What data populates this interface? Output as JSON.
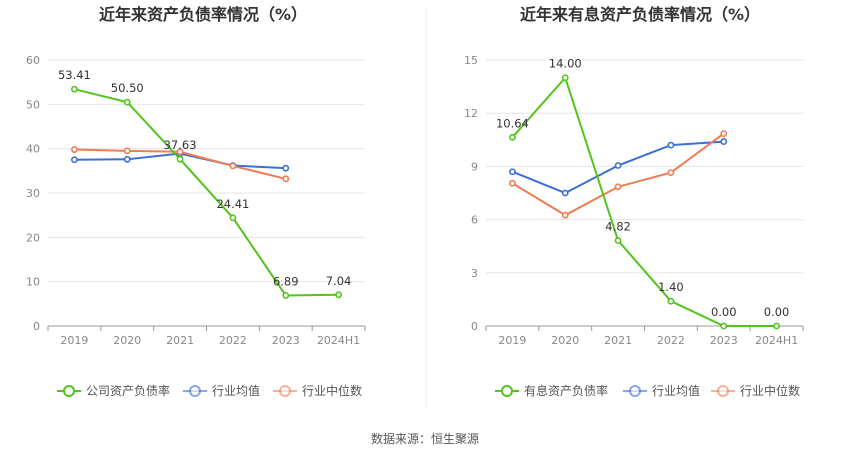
{
  "chart_data": [
    {
      "type": "line",
      "title": "近年来资产负债率情况（%）",
      "categories": [
        "2019",
        "2020",
        "2021",
        "2022",
        "2023",
        "2024H1"
      ],
      "yticks": [
        "0",
        "10",
        "20",
        "30",
        "40",
        "50",
        "60"
      ],
      "ylim": [
        0,
        60
      ],
      "grid": true,
      "legend_position": "bottom",
      "series": [
        {
          "name": "公司资产负债率",
          "color": "#52c41a",
          "values": [
            53.41,
            50.5,
            37.63,
            24.41,
            6.89,
            7.04
          ],
          "labels": [
            "53.41",
            "50.50",
            "37.63",
            "24.41",
            "6.89",
            "7.04"
          ]
        },
        {
          "name": "行业均值",
          "color": "#3a6fd8",
          "values": [
            37.5,
            37.6,
            38.9,
            36.2,
            35.6,
            null
          ]
        },
        {
          "name": "行业中位数",
          "color": "#ef7c52",
          "values": [
            39.8,
            39.5,
            39.3,
            36.1,
            33.2,
            null
          ]
        }
      ]
    },
    {
      "type": "line",
      "title": "近年来有息资产负债率情况（%）",
      "categories": [
        "2019",
        "2020",
        "2021",
        "2022",
        "2023",
        "2024H1"
      ],
      "yticks": [
        "0",
        "3",
        "6",
        "9",
        "12",
        "15"
      ],
      "ylim": [
        0,
        15
      ],
      "grid": true,
      "legend_position": "bottom",
      "series": [
        {
          "name": "有息资产负债率",
          "color": "#52c41a",
          "values": [
            10.64,
            14.0,
            4.82,
            1.4,
            0.0,
            0.0
          ],
          "labels": [
            "10.64",
            "14.00",
            "4.82",
            "1.40",
            "0.00",
            "0.00"
          ]
        },
        {
          "name": "行业均值",
          "color": "#3a6fd8",
          "values": [
            8.7,
            7.5,
            9.05,
            10.2,
            10.4,
            null
          ]
        },
        {
          "name": "行业中位数",
          "color": "#ef7c52",
          "values": [
            8.05,
            6.25,
            7.85,
            8.65,
            10.85,
            null
          ]
        }
      ]
    }
  ],
  "source": "数据来源：恒生聚源"
}
